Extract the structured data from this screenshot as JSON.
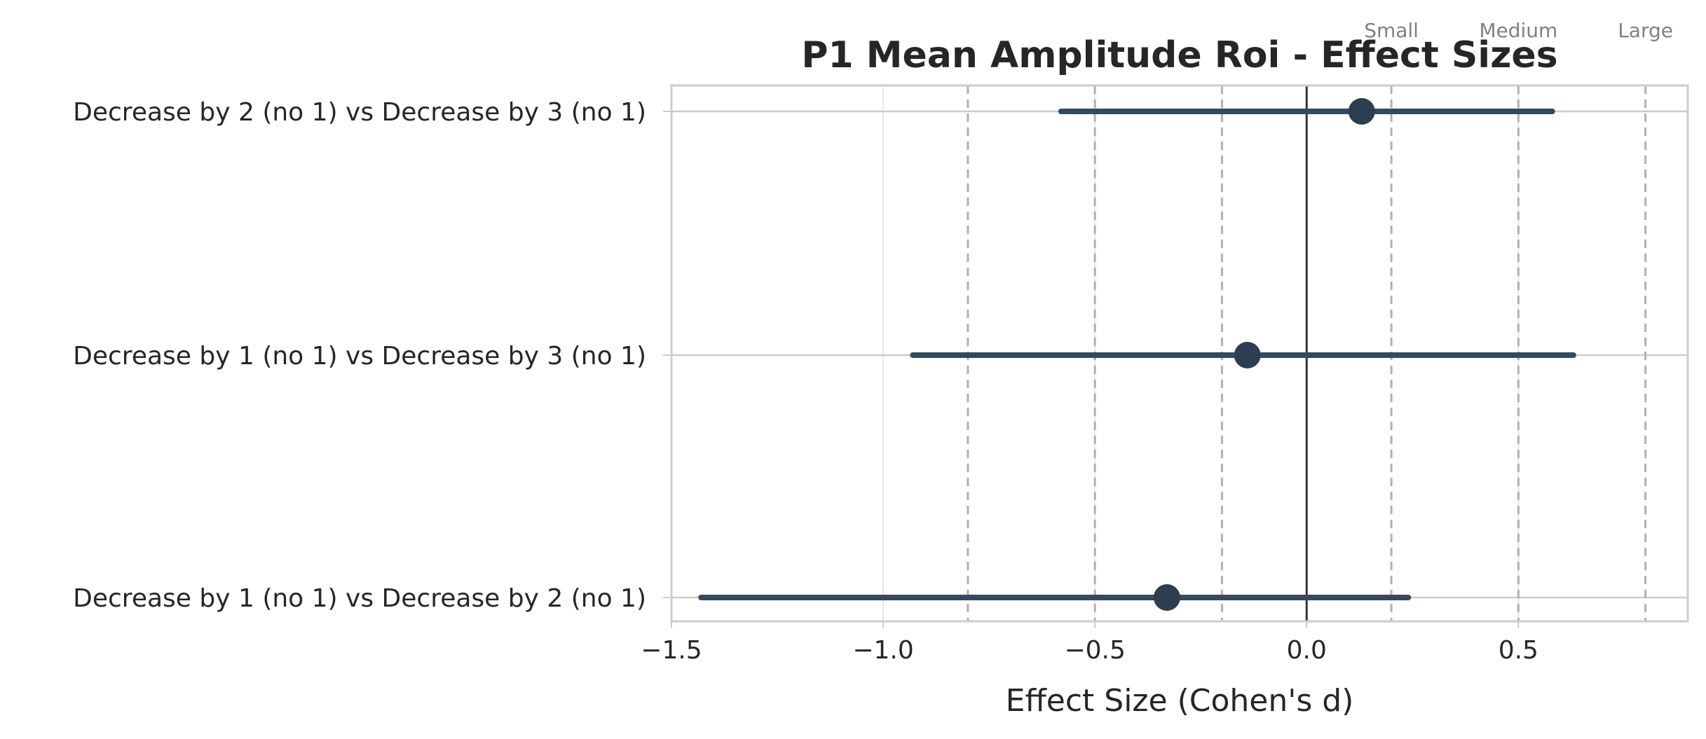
{
  "chart_data": {
    "type": "scatter",
    "variant": "forest-plot",
    "title": "P1 Mean Amplitude Roi - Effect Sizes",
    "xlabel": "Effect Size (Cohen's d)",
    "ylabel": "",
    "xlim": [
      -1.5,
      0.9
    ],
    "xticks": [
      -1.5,
      -1.0,
      -0.5,
      0.0,
      0.5
    ],
    "xtick_labels": [
      "−1.5",
      "−1.0",
      "−0.5",
      "0.0",
      "0.5"
    ],
    "comparisons": [
      {
        "label": "Decrease by 2 (no 1) vs Decrease by 3 (no 1)",
        "d": 0.13,
        "ci": [
          -0.58,
          0.58
        ]
      },
      {
        "label": "Decrease by 1 (no 1) vs Decrease by 3 (no 1)",
        "d": -0.14,
        "ci": [
          -0.93,
          0.63
        ]
      },
      {
        "label": "Decrease by 1 (no 1) vs Decrease by 2 (no 1)",
        "d": -0.33,
        "ci": [
          -1.43,
          0.24
        ]
      }
    ],
    "thresholds": [
      {
        "label": "Small",
        "value": 0.2
      },
      {
        "label": "Medium",
        "value": 0.5
      },
      {
        "label": "Large",
        "value": 0.8
      }
    ],
    "negative_thresholds": [
      -0.2,
      -0.5,
      -0.8
    ],
    "zero_line": 0,
    "grid": true,
    "colors": {
      "point": "#2c3e50",
      "ci_line": "#34495e",
      "zero_line": "#333333",
      "threshold_line": "#b0b0b0",
      "grid": "#e6e6e6",
      "frame": "#cccccc",
      "text": "#262626",
      "threshold_text": "#808080"
    }
  }
}
